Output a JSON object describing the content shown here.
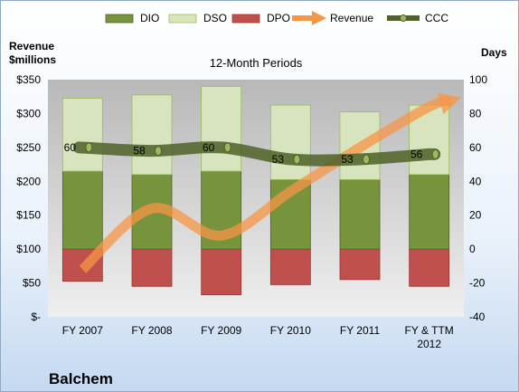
{
  "colors": {
    "dio": "#77933C",
    "dso": "#D7E4BD",
    "dpo": "#C0504D",
    "revenue": "#F79646",
    "ccc": "#4F6228"
  },
  "chart_data": {
    "type": "bar",
    "title": "12-Month Periods",
    "company": "Balchem",
    "ylabel_left": [
      "Revenue",
      "$millions"
    ],
    "ylabel_right": "Days",
    "ylim_left": [
      0,
      350
    ],
    "ylim_right": [
      -40,
      100
    ],
    "yticks_left": [
      "$-",
      "$50",
      "$100",
      "$150",
      "$200",
      "$250",
      "$300",
      "$350"
    ],
    "yticks_right": [
      "-40",
      "-20",
      "0",
      "20",
      "40",
      "60",
      "80",
      "100"
    ],
    "categories": [
      "FY 2007",
      "FY 2008",
      "FY 2009",
      "FY 2010",
      "FY 2011",
      "FY & TTM 2012"
    ],
    "legend": [
      "DIO",
      "DSO",
      "DPO",
      "Revenue",
      "CCC"
    ],
    "series": [
      {
        "name": "DIO",
        "axis": "right",
        "values": [
          46,
          44,
          46,
          41,
          41,
          44
        ]
      },
      {
        "name": "DSO",
        "axis": "right",
        "values": [
          43,
          47,
          50,
          44,
          40,
          41
        ]
      },
      {
        "name": "DPO",
        "axis": "right",
        "values": [
          -19,
          -22,
          -27,
          -21,
          -18,
          -22
        ]
      },
      {
        "name": "Revenue",
        "axis": "left",
        "values": [
          70,
          160,
          120,
          185,
          250,
          310
        ]
      },
      {
        "name": "CCC",
        "axis": "right",
        "values": [
          60,
          58,
          60,
          53,
          53,
          56
        ]
      }
    ],
    "data_labels": {
      "CCC": [
        "60",
        "58",
        "60",
        "53",
        "53",
        "56"
      ]
    },
    "grid": false,
    "legend_position": "top"
  }
}
